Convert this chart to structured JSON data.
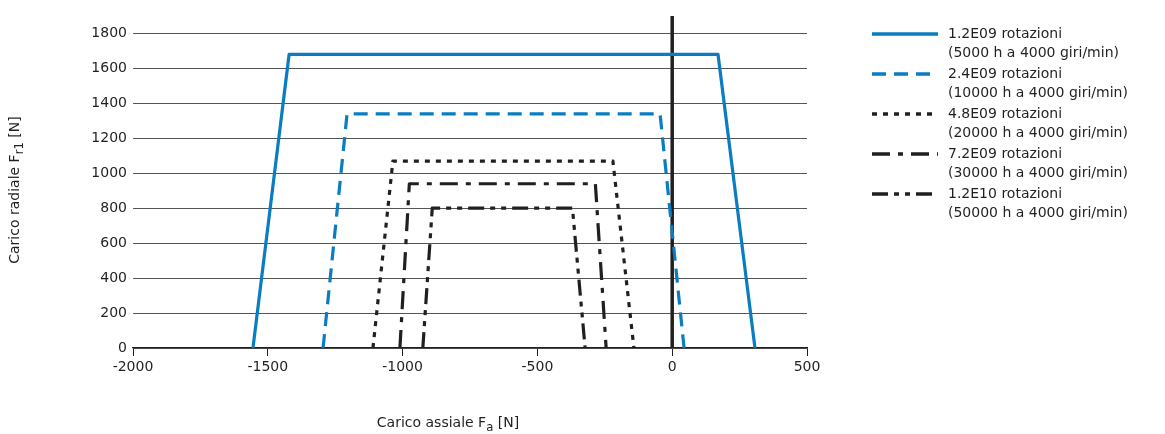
{
  "chart_data": {
    "type": "line",
    "xlabel": "Carico assiale F$_{a}$ [N]",
    "ylabel": "Carico radiale F$_{r1}$ [N]",
    "xlim": [
      -2000,
      500
    ],
    "xticks": [
      -2000,
      -1500,
      -1000,
      -500,
      0,
      500
    ],
    "ylim": [
      0,
      1900
    ],
    "yticks": [
      0,
      200,
      400,
      600,
      800,
      1000,
      1200,
      1400,
      1600,
      1800
    ],
    "grid": "y",
    "legend": "right",
    "marker": "none",
    "ref_lines": [
      {
        "axis": "x",
        "value": 0,
        "color": "#231f20"
      }
    ],
    "series": [
      {
        "name": "1.2E09 rotazioni\n(5000 h a 4000 giri/min)",
        "color": "#0a7cc1",
        "line_style": "solid",
        "x": [
          -1555,
          -1421,
          170,
          307
        ],
        "values": [
          0,
          1680,
          1680,
          0
        ]
      },
      {
        "name": "2.4E09 rotazioni\n(10000 h a 4000 giri/min)",
        "color": "#0a7cc1",
        "line_style": "dashed",
        "x": [
          -1295,
          -1206,
          -45,
          44
        ],
        "values": [
          0,
          1340,
          1340,
          0
        ]
      },
      {
        "name": "4.8E09 rotazioni\n(20000 h a 4000 giri/min)",
        "color": "#231f20",
        "line_style": "dotted",
        "x": [
          -1110,
          -1036,
          -220,
          -142
        ],
        "values": [
          0,
          1070,
          1070,
          0
        ]
      },
      {
        "name": "7.2E09 rotazioni\n(30000 h a 4000 giri/min)",
        "color": "#231f20",
        "line_style": "dashdot",
        "x": [
          -1010,
          -975,
          -285,
          -245
        ],
        "values": [
          0,
          940,
          940,
          0
        ]
      },
      {
        "name": "1.2E10 rotazioni\n(50000 h a 4000 giri/min)",
        "color": "#231f20",
        "line_style": "dashdotdot",
        "x": [
          -925,
          -890,
          -370,
          -323
        ],
        "values": [
          0,
          800,
          800,
          0
        ]
      }
    ]
  }
}
